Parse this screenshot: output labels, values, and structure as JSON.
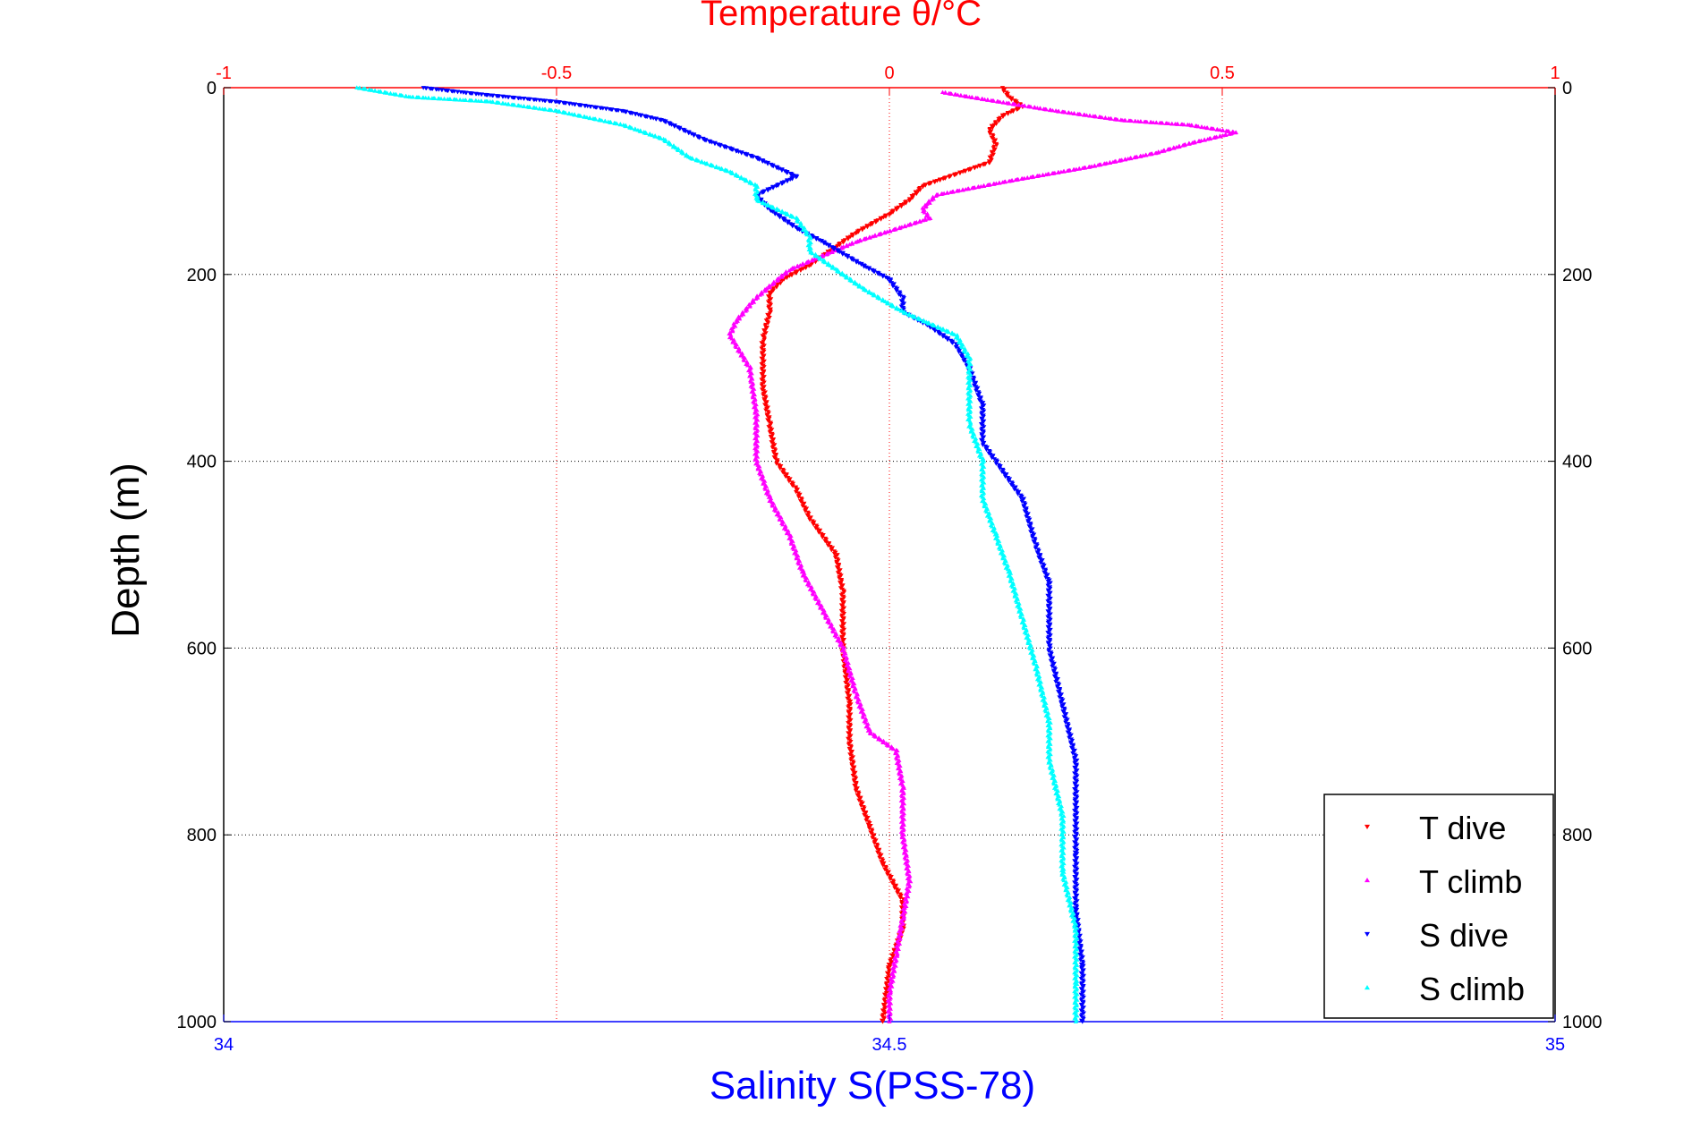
{
  "chart_data": {
    "type": "scatter",
    "title": "Temperature θ/°C",
    "xlabel_bottom": "Salinity S(PSS-78)",
    "ylabel": "Depth (m)",
    "x_top": {
      "label": "Temperature θ/°C",
      "range": [
        -1,
        1
      ],
      "ticks": [
        -1,
        -0.5,
        0,
        0.5,
        1
      ],
      "tick_labels": [
        "-1",
        "-0.5",
        "0",
        "0.5",
        "1"
      ],
      "color": "#ff0000"
    },
    "x_bottom": {
      "label": "Salinity S(PSS-78)",
      "range": [
        34,
        35
      ],
      "ticks": [
        34,
        34.5,
        35
      ],
      "tick_labels": [
        "34",
        "34.5",
        "35"
      ],
      "color": "#0000ff"
    },
    "y": {
      "range": [
        0,
        1000
      ],
      "reversed": true,
      "ticks": [
        0,
        200,
        400,
        600,
        800,
        1000
      ],
      "tick_labels": [
        "0",
        "200",
        "400",
        "600",
        "800",
        "1000"
      ]
    },
    "grid": true,
    "legend_position": "bottom-right",
    "series": [
      {
        "name": "T dive",
        "axis": "top",
        "color": "#ff0000",
        "marker": "triangle-down",
        "points": [
          [
            0.17,
            0
          ],
          [
            0.18,
            10
          ],
          [
            0.2,
            20
          ],
          [
            0.17,
            30
          ],
          [
            0.15,
            45
          ],
          [
            0.16,
            60
          ],
          [
            0.15,
            80
          ],
          [
            0.09,
            95
          ],
          [
            0.05,
            105
          ],
          [
            0.03,
            120
          ],
          [
            0.0,
            135
          ],
          [
            -0.05,
            155
          ],
          [
            -0.08,
            170
          ],
          [
            -0.12,
            190
          ],
          [
            -0.16,
            205
          ],
          [
            -0.18,
            220
          ],
          [
            -0.18,
            240
          ],
          [
            -0.19,
            270
          ],
          [
            -0.19,
            320
          ],
          [
            -0.18,
            360
          ],
          [
            -0.17,
            400
          ],
          [
            -0.14,
            430
          ],
          [
            -0.12,
            460
          ],
          [
            -0.08,
            500
          ],
          [
            -0.07,
            540
          ],
          [
            -0.07,
            600
          ],
          [
            -0.06,
            660
          ],
          [
            -0.06,
            700
          ],
          [
            -0.05,
            750
          ],
          [
            -0.03,
            790
          ],
          [
            -0.01,
            830
          ],
          [
            0.02,
            870
          ],
          [
            0.02,
            900
          ],
          [
            0.0,
            940
          ],
          [
            -0.01,
            1000
          ]
        ]
      },
      {
        "name": "T climb",
        "axis": "top",
        "color": "#ff00ff",
        "marker": "triangle-up",
        "points": [
          [
            0.08,
            5
          ],
          [
            0.12,
            10
          ],
          [
            0.25,
            25
          ],
          [
            0.35,
            35
          ],
          [
            0.45,
            40
          ],
          [
            0.52,
            48
          ],
          [
            0.45,
            60
          ],
          [
            0.4,
            70
          ],
          [
            0.3,
            85
          ],
          [
            0.18,
            100
          ],
          [
            0.07,
            115
          ],
          [
            0.05,
            130
          ],
          [
            0.06,
            140
          ],
          [
            -0.05,
            165
          ],
          [
            -0.15,
            195
          ],
          [
            -0.2,
            225
          ],
          [
            -0.23,
            250
          ],
          [
            -0.24,
            265
          ],
          [
            -0.21,
            300
          ],
          [
            -0.2,
            350
          ],
          [
            -0.2,
            400
          ],
          [
            -0.18,
            440
          ],
          [
            -0.15,
            480
          ],
          [
            -0.13,
            520
          ],
          [
            -0.1,
            560
          ],
          [
            -0.07,
            600
          ],
          [
            -0.05,
            650
          ],
          [
            -0.03,
            690
          ],
          [
            0.01,
            710
          ],
          [
            0.02,
            750
          ],
          [
            0.02,
            800
          ],
          [
            0.03,
            850
          ],
          [
            0.02,
            890
          ],
          [
            0.01,
            930
          ],
          [
            0.0,
            970
          ],
          [
            0.0,
            1000
          ]
        ]
      },
      {
        "name": "S dive",
        "axis": "bottom",
        "color": "#0000ff",
        "marker": "triangle-down",
        "points": [
          [
            34.15,
            0
          ],
          [
            34.18,
            5
          ],
          [
            34.2,
            8
          ],
          [
            34.25,
            15
          ],
          [
            34.3,
            25
          ],
          [
            34.33,
            35
          ],
          [
            34.36,
            55
          ],
          [
            34.38,
            65
          ],
          [
            34.4,
            75
          ],
          [
            34.43,
            95
          ],
          [
            34.4,
            115
          ],
          [
            34.41,
            130
          ],
          [
            34.43,
            150
          ],
          [
            34.45,
            165
          ],
          [
            34.48,
            190
          ],
          [
            34.5,
            205
          ],
          [
            34.51,
            225
          ],
          [
            34.51,
            240
          ],
          [
            34.53,
            255
          ],
          [
            34.55,
            275
          ],
          [
            34.56,
            300
          ],
          [
            34.57,
            340
          ],
          [
            34.57,
            380
          ],
          [
            34.58,
            400
          ],
          [
            34.6,
            440
          ],
          [
            34.61,
            490
          ],
          [
            34.62,
            530
          ],
          [
            34.62,
            600
          ],
          [
            34.63,
            660
          ],
          [
            34.64,
            720
          ],
          [
            34.64,
            760
          ],
          [
            34.64,
            820
          ],
          [
            34.64,
            880
          ],
          [
            34.645,
            940
          ],
          [
            34.645,
            1000
          ]
        ]
      },
      {
        "name": "S climb",
        "axis": "bottom",
        "color": "#00ffff",
        "marker": "triangle-up",
        "points": [
          [
            34.1,
            0
          ],
          [
            34.14,
            10
          ],
          [
            34.2,
            15
          ],
          [
            34.25,
            25
          ],
          [
            34.3,
            40
          ],
          [
            34.33,
            55
          ],
          [
            34.35,
            75
          ],
          [
            34.38,
            90
          ],
          [
            34.4,
            105
          ],
          [
            34.4,
            120
          ],
          [
            34.43,
            140
          ],
          [
            34.44,
            160
          ],
          [
            34.44,
            175
          ],
          [
            34.46,
            195
          ],
          [
            34.48,
            215
          ],
          [
            34.51,
            240
          ],
          [
            34.55,
            265
          ],
          [
            34.56,
            290
          ],
          [
            34.56,
            330
          ],
          [
            34.56,
            360
          ],
          [
            34.57,
            400
          ],
          [
            34.57,
            440
          ],
          [
            34.58,
            480
          ],
          [
            34.59,
            520
          ],
          [
            34.6,
            570
          ],
          [
            34.61,
            620
          ],
          [
            34.62,
            680
          ],
          [
            34.62,
            720
          ],
          [
            34.63,
            780
          ],
          [
            34.63,
            840
          ],
          [
            34.64,
            900
          ],
          [
            34.64,
            960
          ],
          [
            34.64,
            1000
          ]
        ]
      }
    ]
  }
}
